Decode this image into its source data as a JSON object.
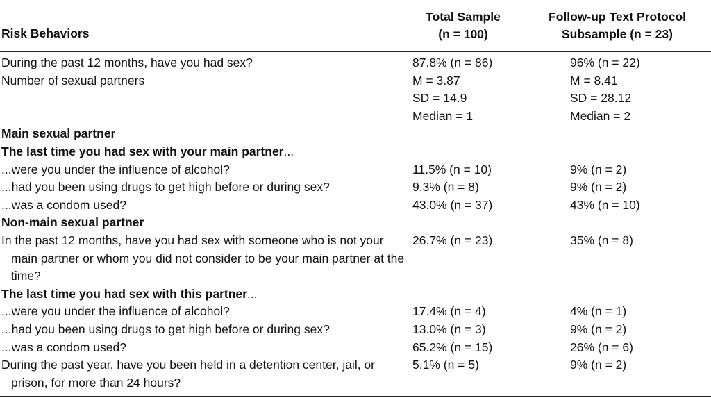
{
  "header": {
    "risk_behaviors": "Risk Behaviors",
    "total_line1": "Total Sample",
    "total_line2": "(n = 100)",
    "follow_line1": "Follow-up Text Protocol",
    "follow_line2": "Subsample (n = 23)"
  },
  "rows": {
    "had_sex": {
      "label": "During the past 12 months, have you had sex?",
      "total": "87.8% (n = 86)",
      "follow": "96% (n = 22)"
    },
    "partners": {
      "label": "Number of sexual partners",
      "total": [
        "M = 3.87",
        "SD = 14.9",
        "Median = 1"
      ],
      "follow": [
        "M = 8.41",
        "SD = 28.12",
        "Median = 2"
      ]
    },
    "main_section": "Main sexual partner",
    "main_last_time": "The last time you had sex with your main partner",
    "main_alcohol": {
      "label": "...were you under the influence of alcohol?",
      "total": "11.5% (n = 10)",
      "follow": "9% (n = 2)"
    },
    "main_drugs": {
      "label": "...had you been using drugs to get high before or during sex?",
      "total": "9.3% (n = 8)",
      "follow": "9% (n = 2)"
    },
    "main_condom": {
      "label": "...was a condom used?",
      "total": "43.0% (n = 37)",
      "follow": "43% (n = 10)"
    },
    "nonmain_section": "Non-main sexual partner",
    "nonmain_sex": {
      "label": "In the past 12 months, have you had sex with someone who is not your main partner or whom you did not consider to be your main partner at the time?",
      "total": "26.7% (n = 23)",
      "follow": "35% (n = 8)"
    },
    "nonmain_last_time": "The last time you had sex with this partner",
    "nonmain_alcohol": {
      "label": "...were you under the influence of alcohol?",
      "total": "17.4% (n = 4)",
      "follow": "4% (n = 1)"
    },
    "nonmain_drugs": {
      "label": "...had you been using drugs to get high before or during sex?",
      "total": "13.0% (n = 3)",
      "follow": "9% (n = 2)"
    },
    "nonmain_condom": {
      "label": "...was a condom used?",
      "total": "65.2% (n = 15)",
      "follow": "26% (n = 6)"
    },
    "detention": {
      "label": "During the past year, have you been held in a detention center, jail, or prison, for more than 24 hours?",
      "total": "5.1% (n = 5)",
      "follow": "9% (n = 2)"
    }
  },
  "ellipsis": "..."
}
